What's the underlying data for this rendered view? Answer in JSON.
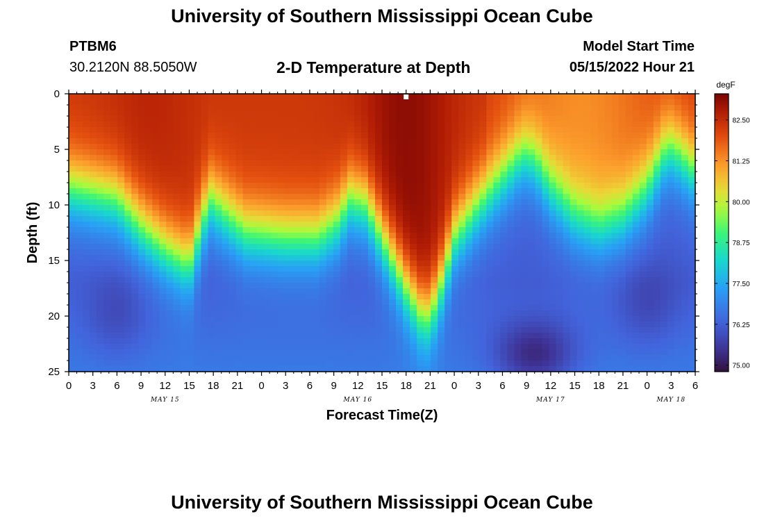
{
  "header": {
    "title": "University of Southern Mississippi Ocean Cube",
    "station": "PTBM6",
    "coords": "30.2120N  88.5050W",
    "subtitle": "2-D Temperature at Depth",
    "model_start_label": "Model Start Time",
    "model_start_value": "05/15/2022 Hour 21"
  },
  "footer": {
    "title": "University of Southern Mississippi Ocean Cube"
  },
  "chart_data": {
    "type": "heatmap",
    "title": "2-D Temperature at Depth",
    "xlabel": "Forecast Time(Z)",
    "ylabel": "Depth (ft)",
    "x_unit": "hours since 05/15/2022 00Z",
    "xlim": [
      0,
      78
    ],
    "ylim": [
      0,
      25
    ],
    "y_inverted": true,
    "y_ticks": [
      0,
      5,
      10,
      15,
      20,
      25
    ],
    "x_tick_labels": [
      "0",
      "3",
      "6",
      "9",
      "12",
      "15",
      "18",
      "21",
      "0",
      "3",
      "6",
      "9",
      "12",
      "15",
      "18",
      "21",
      "0",
      "3",
      "6",
      "9",
      "12",
      "15",
      "18",
      "21",
      "0",
      "3",
      "6"
    ],
    "date_labels": [
      {
        "label": "MAY 15",
        "hour": 12
      },
      {
        "label": "MAY 16",
        "hour": 36
      },
      {
        "label": "MAY 17",
        "hour": 60
      },
      {
        "label": "MAY 18",
        "hour": 75
      }
    ],
    "colorbar": {
      "unit": "degF",
      "min": 74.8,
      "max": 83.3,
      "ticks": [
        "82.50",
        "81.25",
        "80.00",
        "78.75",
        "77.50",
        "76.25",
        "75.00"
      ]
    },
    "thermocline_depth_ft": {
      "hours": [
        0,
        6,
        9,
        12,
        15,
        16.5,
        17.5,
        19,
        22,
        27,
        31,
        33.5,
        35,
        37,
        40,
        42,
        44,
        45,
        46.5,
        48,
        51,
        54,
        56.5,
        58,
        60,
        63,
        66,
        69,
        72,
        74,
        75,
        76,
        78
      ],
      "depths": [
        8.5,
        9.5,
        12,
        14,
        15.5,
        12,
        9.5,
        10.5,
        12.5,
        13,
        13,
        11.5,
        9.5,
        10,
        14.5,
        17.5,
        20,
        20,
        17,
        13,
        10,
        7.5,
        5.5,
        6,
        8.5,
        11,
        12,
        11,
        8.5,
        5.5,
        5,
        5.5,
        7
      ]
    },
    "warm_surface_core": {
      "hour": 42,
      "temp_f": 83.1
    },
    "cold_bottom_core": {
      "hour": 58,
      "depth_ft": 23.5,
      "temp_f": 74.9
    },
    "surface_marker_hour": 42
  }
}
